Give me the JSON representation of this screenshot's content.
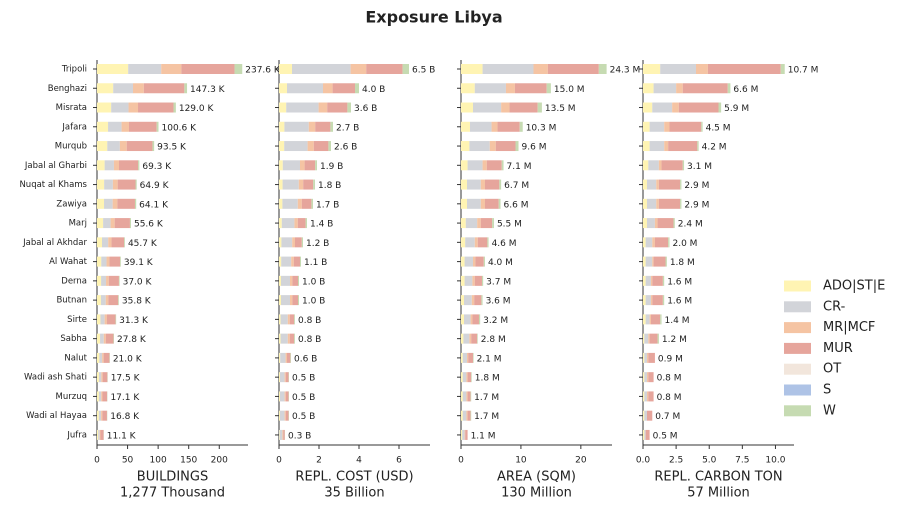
{
  "title": "Exposure Libya",
  "legend": [
    {
      "name": "ADO|ST|E",
      "color": "#fff4b3"
    },
    {
      "name": "CR-",
      "color": "#d2d4d9"
    },
    {
      "name": "MR|MCF",
      "color": "#f5c4a3"
    },
    {
      "name": "MUR",
      "color": "#e6a59c"
    },
    {
      "name": "OT",
      "color": "#f2e6dc"
    },
    {
      "name": "S",
      "color": "#aec3e6"
    },
    {
      "name": "W",
      "color": "#c6dbb2"
    }
  ],
  "categories": [
    "Tripoli",
    "Benghazi",
    "Misrata",
    "Jafara",
    "Murqub",
    "Jabal al Gharbi",
    "Nuqat al Khams",
    "Zawiya",
    "Marj",
    "Jabal al Akhdar",
    "Al Wahat",
    "Derna",
    "Butnan",
    "Sirte",
    "Sabha",
    "Nalut",
    "Wadi ash Shati",
    "Murzuq",
    "Wadi al Hayaa",
    "Jufra"
  ],
  "chart_data": [
    {
      "type": "bar",
      "orientation": "horizontal",
      "stacked": true,
      "xlabel": "BUILDINGS",
      "xsublabel": "1,277 Thousand",
      "xlim": [
        0,
        247
      ],
      "xticks": [
        0,
        50,
        100,
        150,
        200
      ],
      "stacks": [
        [
          51,
          26.5,
          23.2,
          18.1,
          16.8,
          12.5,
          11.7,
          11.5,
          10.0,
          8.2,
          7.0,
          6.7,
          6.4,
          5.6,
          5.0,
          3.8,
          3.2,
          3.1,
          3.0,
          2.0
        ],
        [
          54,
          32.4,
          28.4,
          22.1,
          20.6,
          15.2,
          14.3,
          14.1,
          12.2,
          10.1,
          8.6,
          8.1,
          7.9,
          6.9,
          6.1,
          4.6,
          3.9,
          3.8,
          3.7,
          2.4
        ],
        [
          33,
          17.7,
          15.5,
          12.1,
          11.2,
          8.3,
          7.8,
          7.7,
          6.7,
          5.5,
          4.7,
          4.4,
          4.3,
          3.8,
          3.3,
          2.5,
          2.1,
          2.1,
          2.0,
          1.3
        ],
        [
          87,
          66.3,
          58.0,
          45.3,
          42.1,
          31.2,
          29.2,
          28.8,
          25.0,
          20.6,
          17.6,
          16.7,
          16.1,
          14.1,
          12.5,
          9.5,
          7.8,
          7.6,
          7.6,
          5.1
        ],
        [
          0,
          0,
          0,
          0,
          0,
          0,
          0,
          0,
          0,
          0,
          0,
          0,
          0,
          0,
          0,
          0,
          0,
          0,
          0,
          0
        ],
        [
          0,
          0,
          0,
          0,
          0,
          0,
          0,
          0,
          0,
          0,
          0,
          0,
          0,
          0,
          0,
          0,
          0,
          0,
          0,
          0
        ],
        [
          12.6,
          4.4,
          3.9,
          3.0,
          2.8,
          2.1,
          1.9,
          2.0,
          1.7,
          1.3,
          1.2,
          1.1,
          1.1,
          0.9,
          0.9,
          0.6,
          0.5,
          0.5,
          0.5,
          0.3
        ]
      ],
      "totals": {
        "values": [
          237.6,
          147.3,
          129.0,
          100.6,
          93.5,
          69.3,
          64.9,
          64.1,
          55.6,
          45.7,
          39.1,
          37.0,
          35.8,
          31.3,
          27.8,
          21.0,
          17.5,
          17.1,
          16.8,
          11.1
        ],
        "value_labels": [
          "237.6 K",
          "147.3 K",
          "129.0 K",
          "100.6 K",
          "93.5 K",
          "69.3 K",
          "64.9 K",
          "64.1 K",
          "55.6 K",
          "45.7 K",
          "39.1 K",
          "37.0 K",
          "35.8 K",
          "31.3 K",
          "27.8 K",
          "21.0 K",
          "17.5 K",
          "17.1 K",
          "16.8 K",
          "11.1 K"
        ]
      }
    },
    {
      "type": "bar",
      "orientation": "horizontal",
      "stacked": true,
      "xlabel": "REPL. COST (USD)",
      "xsublabel": "35 Billion",
      "xlim": [
        0,
        7.55
      ],
      "xticks": [
        0,
        2,
        4,
        6
      ],
      "stacks": [
        [
          0.65,
          0.4,
          0.36,
          0.27,
          0.26,
          0.19,
          0.18,
          0.17,
          0.14,
          0.12,
          0.11,
          0.1,
          0.1,
          0.08,
          0.08,
          0.06,
          0.05,
          0.05,
          0.05,
          0.03
        ],
        [
          2.93,
          1.8,
          1.62,
          1.22,
          1.17,
          0.86,
          0.81,
          0.77,
          0.63,
          0.54,
          0.5,
          0.45,
          0.45,
          0.36,
          0.36,
          0.27,
          0.23,
          0.23,
          0.23,
          0.14
        ],
        [
          0.78,
          0.48,
          0.43,
          0.32,
          0.31,
          0.23,
          0.22,
          0.2,
          0.17,
          0.14,
          0.13,
          0.12,
          0.12,
          0.1,
          0.1,
          0.07,
          0.06,
          0.06,
          0.06,
          0.04
        ],
        [
          1.82,
          1.12,
          1.01,
          0.76,
          0.73,
          0.53,
          0.5,
          0.48,
          0.39,
          0.34,
          0.31,
          0.28,
          0.28,
          0.22,
          0.22,
          0.17,
          0.14,
          0.14,
          0.14,
          0.08
        ],
        [
          0,
          0,
          0,
          0,
          0,
          0,
          0,
          0,
          0,
          0,
          0,
          0,
          0,
          0,
          0,
          0,
          0,
          0,
          0,
          0
        ],
        [
          0,
          0,
          0,
          0,
          0,
          0,
          0,
          0,
          0,
          0,
          0,
          0,
          0,
          0,
          0,
          0,
          0,
          0,
          0,
          0
        ],
        [
          0.32,
          0.2,
          0.18,
          0.13,
          0.13,
          0.09,
          0.09,
          0.08,
          0.07,
          0.06,
          0.05,
          0.05,
          0.05,
          0.04,
          0.04,
          0.03,
          0.02,
          0.02,
          0.02,
          0.01
        ]
      ],
      "totals": {
        "values": [
          6.5,
          4.0,
          3.6,
          2.7,
          2.6,
          1.9,
          1.8,
          1.7,
          1.4,
          1.2,
          1.1,
          1.0,
          1.0,
          0.8,
          0.8,
          0.6,
          0.5,
          0.5,
          0.5,
          0.3
        ],
        "value_labels": [
          "6.5 B",
          "4.0 B",
          "3.6 B",
          "2.7 B",
          "2.6 B",
          "1.9 B",
          "1.8 B",
          "1.7 B",
          "1.4 B",
          "1.2 B",
          "1.1 B",
          "1.0 B",
          "1.0 B",
          "0.8 B",
          "0.8 B",
          "0.6 B",
          "0.5 B",
          "0.5 B",
          "0.5 B",
          "0.3 B"
        ]
      }
    },
    {
      "type": "bar",
      "orientation": "horizontal",
      "stacked": true,
      "xlabel": "AREA (SQM)",
      "xsublabel": "130 Million",
      "xlim": [
        0,
        25.2
      ],
      "xticks": [
        0,
        10,
        20
      ],
      "stacks": [
        [
          3.6,
          2.3,
          2.0,
          1.5,
          1.4,
          1.1,
          1.0,
          1.0,
          0.8,
          0.7,
          0.6,
          0.6,
          0.5,
          0.5,
          0.4,
          0.3,
          0.3,
          0.3,
          0.3,
          0.2
        ],
        [
          8.5,
          5.2,
          4.7,
          3.6,
          3.4,
          2.5,
          2.3,
          2.3,
          1.9,
          1.6,
          1.4,
          1.3,
          1.3,
          1.1,
          1.0,
          0.7,
          0.6,
          0.6,
          0.6,
          0.4
        ],
        [
          2.4,
          1.5,
          1.4,
          1.0,
          1.0,
          0.7,
          0.7,
          0.7,
          0.6,
          0.5,
          0.4,
          0.4,
          0.4,
          0.3,
          0.3,
          0.2,
          0.2,
          0.2,
          0.2,
          0.1
        ],
        [
          8.5,
          5.3,
          4.7,
          3.7,
          3.3,
          2.5,
          2.4,
          2.3,
          1.9,
          1.6,
          1.4,
          1.2,
          1.2,
          1.1,
          1.0,
          0.8,
          0.6,
          0.5,
          0.5,
          0.4
        ],
        [
          0,
          0,
          0,
          0,
          0,
          0,
          0,
          0,
          0,
          0,
          0,
          0,
          0,
          0,
          0,
          0,
          0,
          0,
          0,
          0
        ],
        [
          0,
          0,
          0,
          0,
          0,
          0,
          0,
          0,
          0,
          0,
          0,
          0,
          0,
          0,
          0,
          0,
          0,
          0,
          0,
          0
        ],
        [
          1.3,
          0.7,
          0.7,
          0.5,
          0.5,
          0.3,
          0.3,
          0.3,
          0.3,
          0.2,
          0.2,
          0.2,
          0.2,
          0.2,
          0.1,
          0.1,
          0.1,
          0.1,
          0.1,
          0.0
        ]
      ],
      "totals": {
        "values": [
          24.3,
          15.0,
          13.5,
          10.3,
          9.6,
          7.1,
          6.7,
          6.6,
          5.5,
          4.6,
          4.0,
          3.7,
          3.6,
          3.2,
          2.8,
          2.1,
          1.8,
          1.7,
          1.7,
          1.1
        ],
        "value_labels": [
          "24.3 M",
          "15.0 M",
          "13.5 M",
          "10.3 M",
          "9.6 M",
          "7.1 M",
          "6.7 M",
          "6.6 M",
          "5.5 M",
          "4.6 M",
          "4.0 M",
          "3.7 M",
          "3.6 M",
          "3.2 M",
          "2.8 M",
          "2.1 M",
          "1.8 M",
          "1.7 M",
          "1.7 M",
          "1.1 M"
        ]
      }
    },
    {
      "type": "bar",
      "orientation": "horizontal",
      "stacked": true,
      "xlabel": "REPL. CARBON TON",
      "xsublabel": "57 Million",
      "xlim": [
        0,
        11.4
      ],
      "xticks": [
        {
          "value": 0,
          "label": "0.0"
        },
        2.5,
        {
          "value": 5,
          "label": "5.0"
        },
        7.5,
        {
          "value": 10,
          "label": "10.0"
        }
      ],
      "stacks": [
        [
          1.3,
          0.8,
          0.7,
          0.5,
          0.5,
          0.4,
          0.3,
          0.3,
          0.3,
          0.2,
          0.2,
          0.2,
          0.2,
          0.2,
          0.1,
          0.1,
          0.1,
          0.1,
          0.1,
          0.1
        ],
        [
          2.7,
          1.7,
          1.5,
          1.1,
          1.1,
          0.8,
          0.7,
          0.7,
          0.6,
          0.5,
          0.5,
          0.4,
          0.4,
          0.3,
          0.3,
          0.2,
          0.2,
          0.2,
          0.2,
          0.1
        ],
        [
          0.9,
          0.5,
          0.5,
          0.4,
          0.3,
          0.2,
          0.2,
          0.2,
          0.2,
          0.2,
          0.1,
          0.1,
          0.1,
          0.1,
          0.1,
          0.1,
          0.1,
          0.1,
          0.0,
          0.0
        ],
        [
          5.5,
          3.4,
          3.0,
          2.4,
          2.2,
          1.6,
          1.6,
          1.6,
          1.2,
          1.0,
          0.9,
          0.8,
          0.8,
          0.7,
          0.6,
          0.5,
          0.4,
          0.4,
          0.4,
          0.3
        ],
        [
          0,
          0,
          0,
          0,
          0,
          0,
          0,
          0,
          0,
          0,
          0,
          0,
          0,
          0,
          0,
          0,
          0,
          0,
          0,
          0
        ],
        [
          0,
          0,
          0,
          0,
          0,
          0,
          0,
          0,
          0,
          0,
          0,
          0,
          0,
          0,
          0,
          0,
          0,
          0,
          0,
          0
        ],
        [
          0.3,
          0.2,
          0.2,
          0.1,
          0.1,
          0.1,
          0.1,
          0.1,
          0.1,
          0.1,
          0.1,
          0.1,
          0.1,
          0.1,
          0.1,
          0.0,
          0.0,
          0.0,
          0.0,
          0.0
        ]
      ],
      "totals": {
        "values": [
          10.7,
          6.6,
          5.9,
          4.5,
          4.2,
          3.1,
          2.9,
          2.9,
          2.4,
          2.0,
          1.8,
          1.6,
          1.6,
          1.4,
          1.2,
          0.9,
          0.8,
          0.8,
          0.7,
          0.5
        ],
        "value_labels": [
          "10.7 M",
          "6.6 M",
          "5.9 M",
          "4.5 M",
          "4.2 M",
          "3.1 M",
          "2.9 M",
          "2.9 M",
          "2.4 M",
          "2.0 M",
          "1.8 M",
          "1.6 M",
          "1.6 M",
          "1.4 M",
          "1.2 M",
          "0.9 M",
          "0.8 M",
          "0.8 M",
          "0.7 M",
          "0.5 M"
        ]
      }
    }
  ]
}
